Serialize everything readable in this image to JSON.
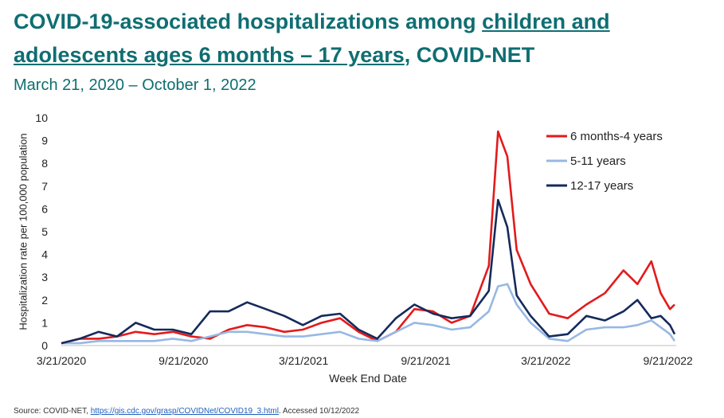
{
  "header": {
    "title_part1": "COVID-19-associated hospitalizations among ",
    "title_underlined": "children and adolescents ages 6 months – 17 years",
    "title_part2": ", COVID-NET",
    "subtitle": "March 21, 2020 – October 1, 2022"
  },
  "footer": {
    "prefix": "Source: COVID-NET, ",
    "link": "https://gis.cdc.gov/grasp/COVIDNet/COVID19_3.html",
    "suffix": ". Accessed 10/12/2022"
  },
  "chart_data": {
    "type": "line",
    "xlabel": "Week End Date",
    "ylabel": "Hospitalization rate per 100,000 population",
    "ylim": [
      0,
      10
    ],
    "yticks": [
      0,
      1,
      2,
      3,
      4,
      5,
      6,
      7,
      8,
      9,
      10
    ],
    "x_range": [
      "2020-03-21",
      "2022-10-01"
    ],
    "xticks": [
      "3/21/2020",
      "9/21/2020",
      "3/21/2021",
      "9/21/2021",
      "3/21/2022",
      "9/21/2022"
    ],
    "xtick_dates": [
      "2020-03-21",
      "2020-09-21",
      "2021-03-21",
      "2021-09-21",
      "2022-03-21",
      "2022-09-21"
    ],
    "legend_position": "top-right",
    "grid": false,
    "series": [
      {
        "name": "6 months-4 years",
        "color": "#e31a1c",
        "points": [
          [
            "2020-03-21",
            0.1
          ],
          [
            "2020-04-18",
            0.3
          ],
          [
            "2020-05-16",
            0.3
          ],
          [
            "2020-06-13",
            0.4
          ],
          [
            "2020-07-11",
            0.6
          ],
          [
            "2020-08-08",
            0.5
          ],
          [
            "2020-09-05",
            0.6
          ],
          [
            "2020-10-03",
            0.4
          ],
          [
            "2020-10-31",
            0.3
          ],
          [
            "2020-11-28",
            0.7
          ],
          [
            "2020-12-26",
            0.9
          ],
          [
            "2021-01-23",
            0.8
          ],
          [
            "2021-02-20",
            0.6
          ],
          [
            "2021-03-20",
            0.7
          ],
          [
            "2021-04-17",
            1.0
          ],
          [
            "2021-05-15",
            1.2
          ],
          [
            "2021-06-12",
            0.6
          ],
          [
            "2021-07-10",
            0.2
          ],
          [
            "2021-08-07",
            0.6
          ],
          [
            "2021-09-04",
            1.6
          ],
          [
            "2021-10-02",
            1.5
          ],
          [
            "2021-10-30",
            1.0
          ],
          [
            "2021-11-27",
            1.3
          ],
          [
            "2021-12-25",
            3.5
          ],
          [
            "2022-01-08",
            9.4
          ],
          [
            "2022-01-22",
            8.3
          ],
          [
            "2022-02-05",
            4.2
          ],
          [
            "2022-02-26",
            2.7
          ],
          [
            "2022-03-26",
            1.4
          ],
          [
            "2022-04-23",
            1.2
          ],
          [
            "2022-05-21",
            1.8
          ],
          [
            "2022-06-18",
            2.3
          ],
          [
            "2022-07-16",
            3.3
          ],
          [
            "2022-08-06",
            2.7
          ],
          [
            "2022-08-27",
            3.7
          ],
          [
            "2022-09-10",
            2.3
          ],
          [
            "2022-09-24",
            1.6
          ],
          [
            "2022-10-01",
            1.8
          ]
        ]
      },
      {
        "name": "5-11 years",
        "color": "#97b8e3",
        "points": [
          [
            "2020-03-21",
            0.1
          ],
          [
            "2020-04-18",
            0.1
          ],
          [
            "2020-05-16",
            0.2
          ],
          [
            "2020-06-13",
            0.2
          ],
          [
            "2020-07-11",
            0.2
          ],
          [
            "2020-08-08",
            0.2
          ],
          [
            "2020-09-05",
            0.3
          ],
          [
            "2020-10-03",
            0.2
          ],
          [
            "2020-10-31",
            0.4
          ],
          [
            "2020-11-28",
            0.6
          ],
          [
            "2020-12-26",
            0.6
          ],
          [
            "2021-01-23",
            0.5
          ],
          [
            "2021-02-20",
            0.4
          ],
          [
            "2021-03-20",
            0.4
          ],
          [
            "2021-04-17",
            0.5
          ],
          [
            "2021-05-15",
            0.6
          ],
          [
            "2021-06-12",
            0.3
          ],
          [
            "2021-07-10",
            0.2
          ],
          [
            "2021-08-07",
            0.6
          ],
          [
            "2021-09-04",
            1.0
          ],
          [
            "2021-10-02",
            0.9
          ],
          [
            "2021-10-30",
            0.7
          ],
          [
            "2021-11-27",
            0.8
          ],
          [
            "2021-12-25",
            1.5
          ],
          [
            "2022-01-08",
            2.6
          ],
          [
            "2022-01-22",
            2.7
          ],
          [
            "2022-02-05",
            1.8
          ],
          [
            "2022-02-26",
            1.0
          ],
          [
            "2022-03-26",
            0.3
          ],
          [
            "2022-04-23",
            0.2
          ],
          [
            "2022-05-21",
            0.7
          ],
          [
            "2022-06-18",
            0.8
          ],
          [
            "2022-07-16",
            0.8
          ],
          [
            "2022-08-06",
            0.9
          ],
          [
            "2022-08-27",
            1.1
          ],
          [
            "2022-09-10",
            0.8
          ],
          [
            "2022-09-24",
            0.5
          ],
          [
            "2022-10-01",
            0.2
          ]
        ]
      },
      {
        "name": "12-17 years",
        "color": "#152a5c",
        "points": [
          [
            "2020-03-21",
            0.1
          ],
          [
            "2020-04-18",
            0.3
          ],
          [
            "2020-05-16",
            0.6
          ],
          [
            "2020-06-13",
            0.4
          ],
          [
            "2020-07-11",
            1.0
          ],
          [
            "2020-08-08",
            0.7
          ],
          [
            "2020-09-05",
            0.7
          ],
          [
            "2020-10-03",
            0.5
          ],
          [
            "2020-10-31",
            1.5
          ],
          [
            "2020-11-28",
            1.5
          ],
          [
            "2020-12-26",
            1.9
          ],
          [
            "2021-01-23",
            1.6
          ],
          [
            "2021-02-20",
            1.3
          ],
          [
            "2021-03-20",
            0.9
          ],
          [
            "2021-04-17",
            1.3
          ],
          [
            "2021-05-15",
            1.4
          ],
          [
            "2021-06-12",
            0.7
          ],
          [
            "2021-07-10",
            0.3
          ],
          [
            "2021-08-07",
            1.2
          ],
          [
            "2021-09-04",
            1.8
          ],
          [
            "2021-10-02",
            1.4
          ],
          [
            "2021-10-30",
            1.2
          ],
          [
            "2021-11-27",
            1.3
          ],
          [
            "2021-12-25",
            2.4
          ],
          [
            "2022-01-08",
            6.4
          ],
          [
            "2022-01-22",
            5.2
          ],
          [
            "2022-02-05",
            2.2
          ],
          [
            "2022-02-26",
            1.3
          ],
          [
            "2022-03-26",
            0.4
          ],
          [
            "2022-04-23",
            0.5
          ],
          [
            "2022-05-21",
            1.3
          ],
          [
            "2022-06-18",
            1.1
          ],
          [
            "2022-07-16",
            1.5
          ],
          [
            "2022-08-06",
            2.0
          ],
          [
            "2022-08-27",
            1.2
          ],
          [
            "2022-09-10",
            1.3
          ],
          [
            "2022-09-24",
            0.9
          ],
          [
            "2022-10-01",
            0.5
          ]
        ]
      }
    ]
  }
}
